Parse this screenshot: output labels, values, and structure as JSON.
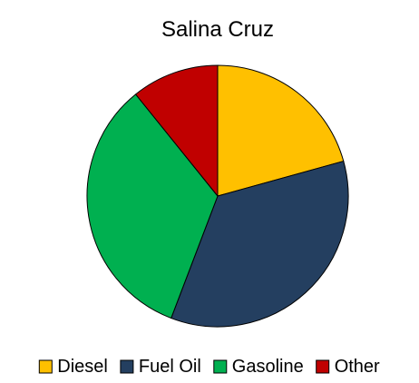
{
  "chart_data": {
    "type": "pie",
    "title": "Salina Cruz",
    "slices": [
      {
        "label": "Diesel",
        "value": 20.7,
        "color": "#FFC000"
      },
      {
        "label": "Fuel Oil",
        "value": 35.1,
        "color": "#243F60"
      },
      {
        "label": "Gasoline",
        "value": 33.4,
        "color": "#00B050"
      },
      {
        "label": "Other",
        "value": 10.8,
        "color": "#C00000"
      }
    ],
    "legend_position": "bottom",
    "start_angle": "top",
    "direction": "clockwise"
  }
}
